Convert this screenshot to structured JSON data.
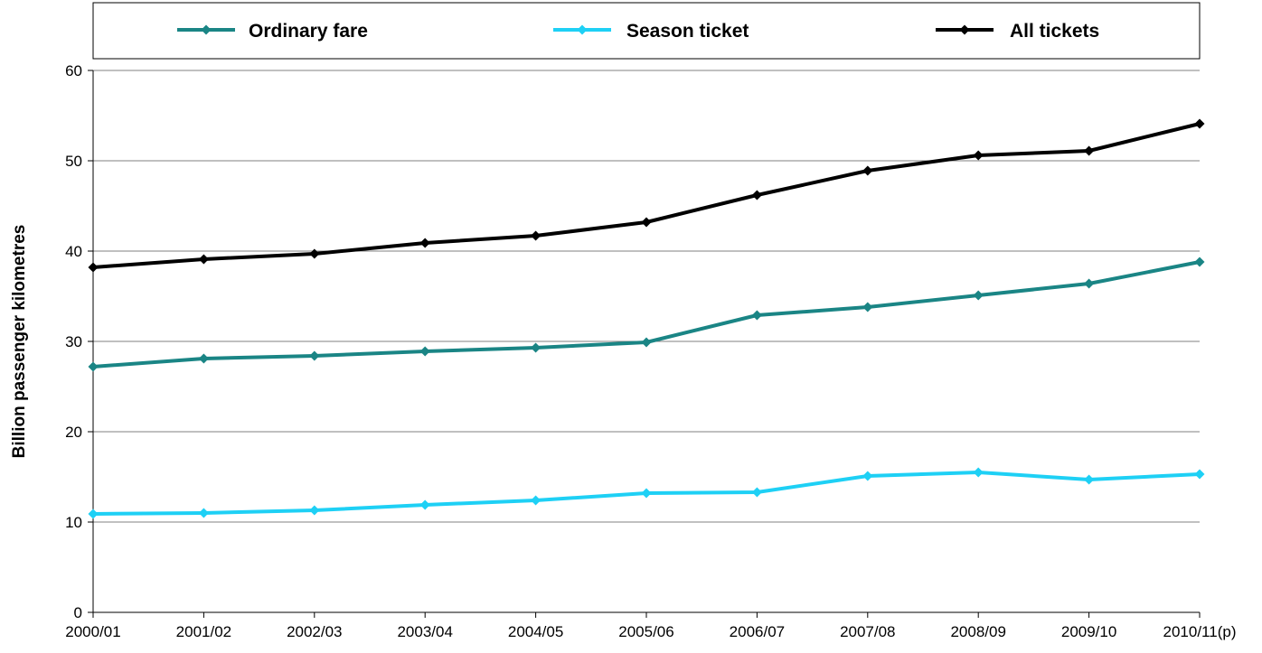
{
  "chart_data": {
    "type": "line",
    "title": "",
    "xlabel": "",
    "ylabel": "Billion passenger kilometres",
    "ylim": [
      0,
      60
    ],
    "yticks": [
      0,
      10,
      20,
      30,
      40,
      50,
      60
    ],
    "grid": true,
    "legend_position": "top",
    "categories": [
      "2000/01",
      "2001/02",
      "2002/03",
      "2003/04",
      "2004/05",
      "2005/06",
      "2006/07",
      "2007/08",
      "2008/09",
      "2009/10",
      "2010/11(p)"
    ],
    "series": [
      {
        "name": "Ordinary fare",
        "color": "#1a8585",
        "values": [
          27.2,
          28.1,
          28.4,
          28.9,
          29.3,
          29.9,
          32.9,
          33.8,
          35.1,
          36.4,
          38.8
        ]
      },
      {
        "name": "Season ticket",
        "color": "#1ed0f5",
        "values": [
          10.9,
          11.0,
          11.3,
          11.9,
          12.4,
          13.2,
          13.3,
          15.1,
          15.5,
          14.7,
          15.3
        ]
      },
      {
        "name": "All tickets",
        "color": "#000000",
        "values": [
          38.2,
          39.1,
          39.7,
          40.9,
          41.7,
          43.2,
          46.2,
          48.9,
          50.6,
          51.1,
          54.1
        ]
      }
    ]
  }
}
